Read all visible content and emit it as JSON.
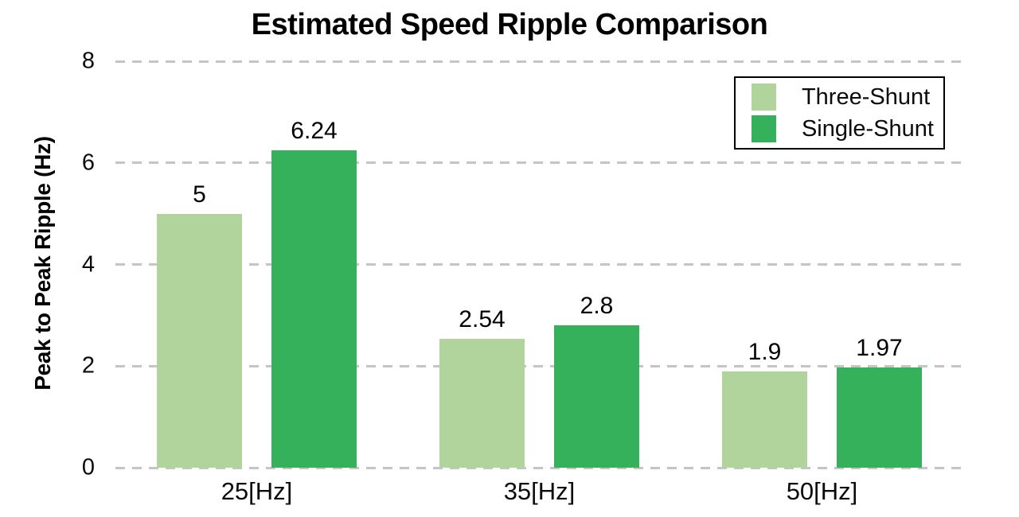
{
  "chart_data": {
    "type": "bar",
    "title": "Estimated Speed Ripple Comparison",
    "categories": [
      "25[Hz]",
      "35[Hz]",
      "50[Hz]"
    ],
    "series": [
      {
        "name": "Three-Shunt",
        "color": "#b1d39c",
        "values": [
          5,
          2.54,
          1.9
        ]
      },
      {
        "name": "Single-Shunt",
        "color": "#35b05b",
        "values": [
          6.24,
          2.8,
          1.97
        ]
      }
    ],
    "xlabel": "",
    "ylabel": "Peak to Peak Ripple (Hz)",
    "ylim": [
      0,
      8
    ],
    "yticks": [
      0,
      2,
      4,
      6,
      8
    ],
    "bar_value_labels": {
      "Three-Shunt": [
        "5",
        "2.54",
        "1.9"
      ],
      "Single-Shunt": [
        "6.24",
        "2.8",
        "1.97"
      ]
    },
    "grid": {
      "axis": "y",
      "style": "dashed",
      "color": "#c5c5c5"
    },
    "legend": {
      "position": "top-right",
      "entries": [
        "Three-Shunt",
        "Single-Shunt"
      ]
    }
  }
}
